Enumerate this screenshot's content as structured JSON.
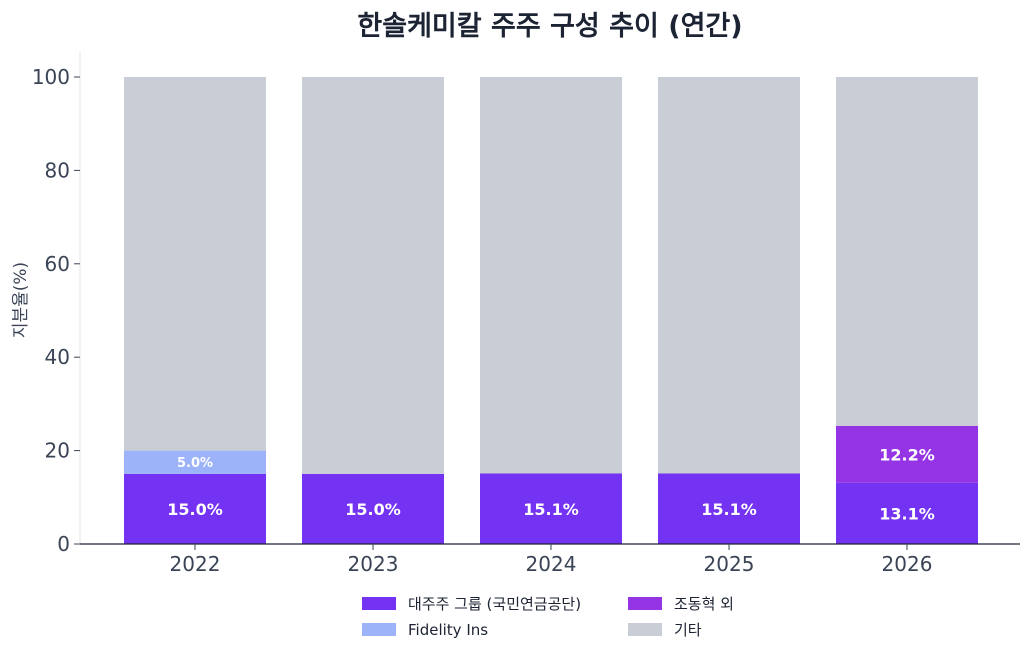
{
  "chart_data": {
    "type": "bar",
    "stacked": true,
    "title": "한솔케미칼 주주 구성 추이 (연간)",
    "xlabel": "",
    "ylabel": "지분율(%)",
    "ylim": [
      0,
      100
    ],
    "yticks": [
      "0",
      "20",
      "40",
      "60",
      "80",
      "100"
    ],
    "categories": [
      "2022",
      "2023",
      "2024",
      "2025",
      "2026"
    ],
    "grid": false,
    "legend_position": "bottom-center",
    "series": [
      {
        "name": "대주주 그룹 (국민연금공단)",
        "color": "#7433f2",
        "values": [
          15.0,
          15.0,
          15.1,
          15.1,
          13.1
        ],
        "labels": [
          "15.0%",
          "15.0%",
          "15.1%",
          "15.1%",
          "13.1%"
        ]
      },
      {
        "name": "Fidelity Ins",
        "color": "#9db3f9",
        "values": [
          5.0,
          0,
          0,
          0,
          0
        ],
        "labels": [
          "5.0%",
          "",
          "",
          "",
          ""
        ]
      },
      {
        "name": "조동혁 외",
        "color": "#9434e4",
        "values": [
          0,
          0,
          0,
          0,
          12.2
        ],
        "labels": [
          "",
          "",
          "",
          "",
          "12.2%"
        ]
      },
      {
        "name": "기타",
        "color": "#c9cdd6",
        "values": [
          80.0,
          85.0,
          84.9,
          84.9,
          74.7
        ],
        "labels": [
          "",
          "",
          "",
          "",
          ""
        ]
      }
    ]
  }
}
